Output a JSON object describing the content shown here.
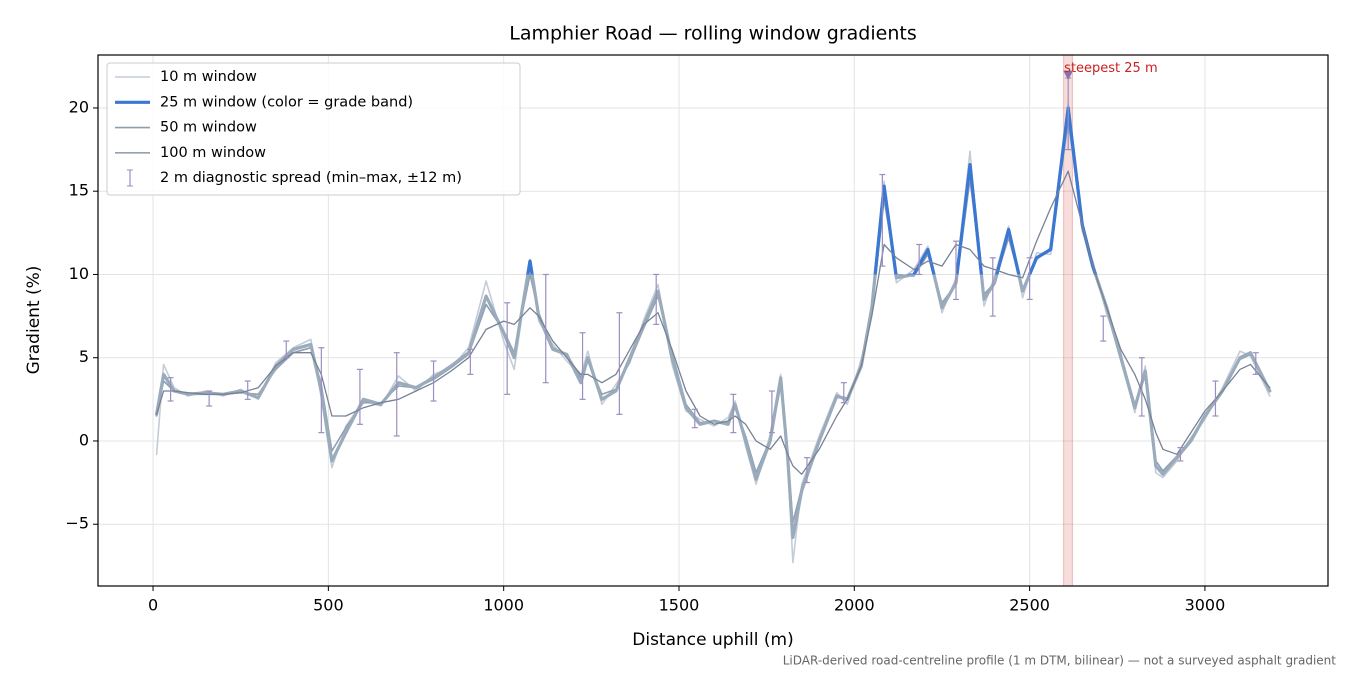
{
  "chart_data": {
    "type": "line",
    "title": "Lamphier Road — rolling window gradients",
    "x_label": "Distance uphill (m)",
    "y_label": "Gradient (%)",
    "footnote": "LiDAR-derived road-centreline profile (1 m DTM, bilinear) — not a surveyed asphalt gradient",
    "xlim": [
      -157,
      3351
    ],
    "ylim": [
      -8.71,
      23.18
    ],
    "xticks": [
      0,
      500,
      1000,
      1500,
      2000,
      2500,
      3000
    ],
    "yticks": [
      {
        "value": -5,
        "label": "−5"
      },
      0,
      5,
      10,
      15,
      20
    ],
    "grid": true,
    "legend": "upper left",
    "x": [
      10,
      30,
      60,
      100,
      150,
      200,
      250,
      300,
      350,
      400,
      450,
      480,
      510,
      550,
      600,
      650,
      700,
      750,
      800,
      850,
      900,
      950,
      1000,
      1030,
      1075,
      1100,
      1140,
      1180,
      1220,
      1240,
      1280,
      1320,
      1360,
      1400,
      1440,
      1480,
      1520,
      1560,
      1600,
      1640,
      1660,
      1690,
      1720,
      1760,
      1790,
      1810,
      1825,
      1850,
      1900,
      1950,
      1980,
      2020,
      2050,
      2085,
      2120,
      2170,
      2210,
      2250,
      2290,
      2330,
      2370,
      2400,
      2440,
      2480,
      2520,
      2560,
      2610,
      2650,
      2680,
      2720,
      2760,
      2800,
      2830,
      2860,
      2880,
      2920,
      2960,
      3000,
      3050,
      3100,
      3130,
      3185
    ],
    "series": [
      {
        "name": "10 m window",
        "color": "#c3ccd8",
        "width": 1.6,
        "values": [
          -0.8,
          4.6,
          3.2,
          2.7,
          3.0,
          2.7,
          3.1,
          2.5,
          4.7,
          5.6,
          6.1,
          2.6,
          -1.6,
          0.9,
          2.4,
          2.1,
          3.9,
          3.0,
          4.0,
          4.4,
          5.6,
          9.6,
          6.0,
          4.3,
          10.9,
          7.2,
          5.8,
          4.8,
          3.9,
          5.4,
          2.2,
          3.4,
          4.7,
          7.3,
          9.4,
          4.6,
          1.8,
          1.3,
          0.9,
          1.4,
          2.4,
          -0.3,
          -2.6,
          0.4,
          4.0,
          -1.4,
          -7.3,
          -2.6,
          0.3,
          2.9,
          2.2,
          4.9,
          7.6,
          15.6,
          9.5,
          10.3,
          11.7,
          7.7,
          9.8,
          17.4,
          8.1,
          9.9,
          12.9,
          8.6,
          11.3,
          11.2,
          20.3,
          12.6,
          10.8,
          7.6,
          5.3,
          1.7,
          4.5,
          -1.9,
          -2.2,
          -1.2,
          0.2,
          1.3,
          3.2,
          5.4,
          5.1,
          2.7
        ]
      },
      {
        "name": "25 m window (color = grade band)",
        "color": "#9aabbb",
        "width": 3.2,
        "highlight": {
          "color": "#3a78d4",
          "above": 10
        },
        "values": [
          1.6,
          4.0,
          3.0,
          2.8,
          2.9,
          2.8,
          3.0,
          2.6,
          4.5,
          5.5,
          5.8,
          3.0,
          -1.2,
          0.5,
          2.5,
          2.2,
          3.5,
          3.2,
          3.8,
          4.5,
          5.3,
          8.7,
          6.5,
          5.0,
          10.8,
          7.5,
          5.5,
          5.2,
          3.5,
          5.0,
          2.5,
          3.0,
          5.0,
          7.0,
          9.0,
          5.0,
          2.0,
          1.0,
          1.2,
          1.0,
          2.2,
          0.0,
          -2.3,
          0.0,
          3.8,
          -1.0,
          -5.8,
          -3.0,
          0.0,
          2.7,
          2.5,
          4.5,
          8.0,
          15.3,
          9.8,
          10.0,
          11.5,
          8.0,
          9.5,
          16.6,
          8.5,
          9.5,
          12.7,
          9.0,
          11.0,
          11.5,
          20.0,
          13.0,
          10.5,
          8.0,
          5.0,
          2.0,
          4.2,
          -1.5,
          -2.0,
          -1.0,
          0.0,
          1.5,
          3.0,
          5.0,
          5.3,
          3.0
        ]
      },
      {
        "name": "50 m window",
        "color": "#8f9db0",
        "width": 1.6,
        "values": [
          1.5,
          3.6,
          3.0,
          2.8,
          2.8,
          2.8,
          2.9,
          2.8,
          4.3,
          5.3,
          5.6,
          3.4,
          -0.6,
          0.8,
          2.3,
          2.3,
          3.3,
          3.2,
          3.7,
          4.4,
          5.2,
          8.2,
          6.6,
          5.3,
          10.0,
          7.7,
          5.6,
          5.2,
          3.8,
          4.8,
          2.8,
          3.1,
          4.8,
          6.8,
          8.7,
          5.3,
          2.2,
          1.1,
          1.2,
          1.1,
          2.0,
          0.3,
          -1.9,
          0.1,
          3.3,
          -0.8,
          -4.9,
          -2.8,
          0.1,
          2.6,
          2.6,
          4.4,
          7.8,
          14.5,
          10.0,
          9.9,
          11.2,
          8.3,
          9.4,
          15.7,
          8.8,
          9.5,
          12.2,
          9.1,
          10.9,
          11.6,
          19.2,
          13.2,
          10.6,
          8.1,
          5.2,
          2.2,
          3.9,
          -1.2,
          -1.8,
          -0.9,
          0.1,
          1.6,
          3.0,
          4.9,
          5.2,
          3.1
        ]
      },
      {
        "name": "100 m window",
        "color": "#778296",
        "width": 1.3,
        "values": [
          1.6,
          3.0,
          3.0,
          2.9,
          2.8,
          2.8,
          2.9,
          3.2,
          4.5,
          5.3,
          5.3,
          4.0,
          1.5,
          1.5,
          2.0,
          2.3,
          2.5,
          3.0,
          3.5,
          4.2,
          5.0,
          6.7,
          7.2,
          7.0,
          8.0,
          7.5,
          6.0,
          5.0,
          4.0,
          4.0,
          3.5,
          4.0,
          5.5,
          7.0,
          7.7,
          5.5,
          3.0,
          1.5,
          1.0,
          1.2,
          1.5,
          1.0,
          0.0,
          -0.5,
          0.3,
          -0.8,
          -1.5,
          -2.0,
          -0.5,
          1.5,
          2.5,
          4.5,
          7.5,
          11.8,
          11.0,
          10.3,
          10.8,
          10.5,
          11.8,
          11.5,
          10.5,
          10.3,
          10.0,
          9.8,
          12.0,
          14.0,
          16.2,
          13.0,
          10.5,
          8.0,
          5.5,
          4.0,
          2.5,
          0.5,
          -0.5,
          -0.8,
          0.5,
          1.8,
          3.0,
          4.3,
          4.6,
          3.2
        ]
      }
    ],
    "errorbars": {
      "name": "2 m diagnostic spread (min–max, ±12 m)",
      "color": "#9a8fc0",
      "x": [
        50,
        160,
        270,
        380,
        480,
        590,
        695,
        800,
        905,
        1010,
        1120,
        1225,
        1330,
        1435,
        1545,
        1655,
        1765,
        1865,
        1970,
        2080,
        2185,
        2290,
        2395,
        2500,
        2610,
        2710,
        2820,
        2930,
        3030,
        3145
      ],
      "low": [
        2.4,
        2.1,
        2.5,
        5.0,
        0.5,
        1.0,
        0.3,
        2.4,
        4.0,
        2.8,
        3.5,
        2.5,
        1.6,
        7.0,
        0.8,
        0.5,
        0.5,
        -2.5,
        2.3,
        10.5,
        10.0,
        8.5,
        7.5,
        8.5,
        17.5,
        6.0,
        1.5,
        -1.2,
        1.5,
        4.0
      ],
      "high": [
        3.8,
        3.0,
        3.6,
        6.0,
        5.6,
        4.3,
        5.3,
        4.8,
        5.5,
        8.3,
        10.0,
        6.5,
        7.7,
        10.0,
        1.9,
        2.8,
        3.0,
        -1.0,
        3.5,
        16.0,
        11.8,
        12.0,
        11.0,
        11.0,
        21.8,
        7.5,
        5.0,
        -0.4,
        3.6,
        5.3
      ]
    },
    "steepest": {
      "label": "steepest 25 m",
      "span": [
        2597,
        2622
      ],
      "x": 2610,
      "y": 22,
      "color": "#d9534f"
    }
  }
}
